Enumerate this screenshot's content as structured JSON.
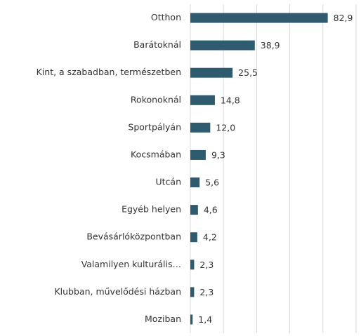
{
  "chart_data": {
    "type": "bar",
    "orientation": "horizontal",
    "categories": [
      "Otthon",
      "Barátoknál",
      "Kint, a szabadban, természetben",
      "Rokonoknál",
      "Sportpályán",
      "Kocsmában",
      "Utcán",
      "Egyéb helyen",
      "Bevásárlóközpontban",
      "Valamilyen kulturális…",
      "Klubban, művelődési házban",
      "Moziban"
    ],
    "values": [
      82.9,
      38.9,
      25.5,
      14.8,
      12.0,
      9.3,
      5.6,
      4.6,
      4.2,
      2.3,
      2.3,
      1.4
    ],
    "value_labels": [
      "82,9",
      "38,9",
      "25,5",
      "14,8",
      "12,0",
      "9,3",
      "5,6",
      "4,6",
      "4,2",
      "2,3",
      "2,3",
      "1,4"
    ],
    "color": "#2f5b6e",
    "xlim": [
      0,
      100
    ],
    "xticks": [
      0,
      20,
      40,
      60,
      80,
      100
    ],
    "grid": true
  }
}
